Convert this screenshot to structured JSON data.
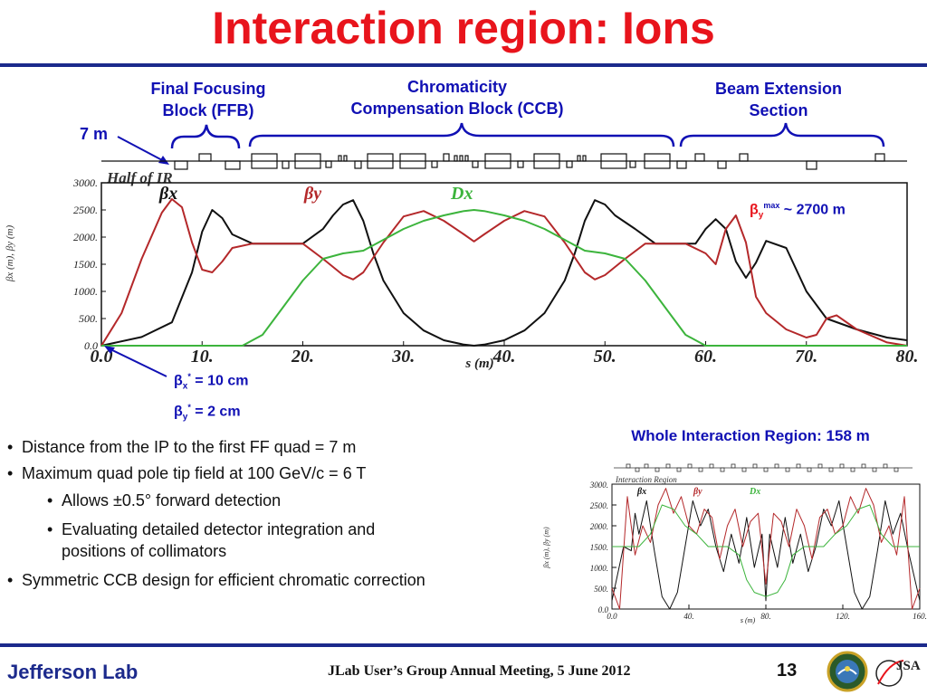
{
  "slide": {
    "title": "Interaction region: Ions",
    "page_number": "13",
    "footer_event": "JLab User’s Group Annual Meeting, 5 June 2012",
    "footer_logo": "Jefferson Lab",
    "footer_logo2": "JSA"
  },
  "callouts": {
    "ffb_line1": "Final Focusing",
    "ffb_line2": "Block (FFB)",
    "ccb_line1": "Chromaticity",
    "ccb_line2": "Compensation Block (CCB)",
    "bes_line1": "Beam Extension",
    "bes_line2": "Section",
    "distance": "7 m",
    "beta_max_sym": "β",
    "beta_max_sub": "y",
    "beta_max_sup": "max",
    "beta_max_val": " ~ 2700 m",
    "bx_sym": "β",
    "bx_sub": "x",
    "bx_sup": "*",
    "bx_val": " = 10 cm",
    "by_sym": "β",
    "by_sub": "y",
    "by_sup": "*",
    "by_val": " = 2 cm",
    "whole_ir": "Whole Interaction Region: 158 m"
  },
  "bullets": {
    "b1": "Distance from the IP to the first FF quad = 7 m",
    "b2": "Maximum quad pole tip field at 100 GeV/c = 6 T",
    "b2a": "Allows ±0.5° forward detection",
    "b2b_1": "Evaluating detailed detector integration and",
    "b2b_2": "positions of collimators",
    "b3": "Symmetric CCB design for efficient chromatic correction"
  },
  "colors": {
    "title_red": "#e8141c",
    "accent_blue": "#1010b4",
    "beta_x": "#111111",
    "beta_y": "#b4282a",
    "dispersion": "#3cb43c"
  },
  "chart_data": [
    {
      "type": "line",
      "title": "Half of IR",
      "xlabel": "s (m)",
      "ylabel": "βx (m), βy (m)",
      "xlim": [
        0,
        80
      ],
      "ylim": [
        0,
        3000
      ],
      "xticks": [
        "0.0",
        "10.",
        "20.",
        "30.",
        "40.",
        "50.",
        "60.",
        "70.",
        "80."
      ],
      "yticks": [
        "0.0",
        "500.",
        "1000.",
        "1500.",
        "2000.",
        "2500.",
        "3000."
      ],
      "legend": [
        "βx",
        "βy",
        "Dx"
      ],
      "grid": false,
      "series": [
        {
          "name": "βx",
          "color": "#111111",
          "x": [
            0,
            4,
            7,
            9,
            10,
            11,
            12,
            13,
            15,
            18,
            20,
            22,
            23,
            24,
            25,
            26,
            27,
            28,
            30,
            32,
            34,
            36,
            37,
            38,
            40,
            42,
            44,
            46,
            47,
            48,
            49,
            50,
            51,
            53,
            55,
            57,
            59,
            60,
            61,
            62,
            63,
            64,
            65,
            66,
            68,
            70,
            72,
            75,
            78,
            80
          ],
          "y": [
            0,
            160,
            430,
            1350,
            2100,
            2500,
            2350,
            2050,
            1880,
            1880,
            1880,
            2150,
            2400,
            2600,
            2680,
            2300,
            1700,
            1200,
            600,
            280,
            100,
            20,
            0,
            20,
            100,
            280,
            600,
            1200,
            1700,
            2300,
            2680,
            2600,
            2400,
            2150,
            1880,
            1880,
            1880,
            2150,
            2330,
            2150,
            1550,
            1250,
            1530,
            1930,
            1800,
            1000,
            500,
            300,
            150,
            100
          ]
        },
        {
          "name": "βy",
          "color": "#b4282a",
          "x": [
            0,
            2,
            4,
            6,
            7,
            8,
            9,
            10,
            11,
            12,
            13,
            15,
            18,
            20,
            22,
            24,
            25,
            26,
            28,
            30,
            32,
            34,
            36,
            37,
            38,
            40,
            42,
            44,
            46,
            48,
            49,
            50,
            52,
            54,
            56,
            58,
            60,
            61,
            62,
            63,
            64,
            65,
            66,
            68,
            70,
            71,
            72,
            73,
            75,
            78,
            80
          ],
          "y": [
            0,
            600,
            1600,
            2450,
            2700,
            2550,
            1900,
            1400,
            1350,
            1550,
            1800,
            1880,
            1880,
            1880,
            1600,
            1300,
            1220,
            1350,
            1900,
            2380,
            2480,
            2300,
            2050,
            1920,
            2050,
            2300,
            2480,
            2380,
            1900,
            1350,
            1220,
            1300,
            1600,
            1880,
            1880,
            1880,
            1700,
            1500,
            2150,
            2400,
            1900,
            900,
            600,
            300,
            150,
            200,
            500,
            560,
            300,
            60,
            0
          ]
        },
        {
          "name": "Dx",
          "color": "#3cb43c",
          "x": [
            0,
            10,
            14,
            16,
            18,
            20,
            22,
            24,
            26,
            28,
            30,
            32,
            34,
            36,
            37,
            38,
            40,
            42,
            44,
            46,
            48,
            50,
            52,
            54,
            56,
            58,
            60,
            62,
            70,
            80
          ],
          "y": [
            0,
            0,
            0,
            200,
            700,
            1200,
            1600,
            1700,
            1750,
            1950,
            2150,
            2300,
            2400,
            2480,
            2500,
            2480,
            2400,
            2300,
            2150,
            1950,
            1750,
            1700,
            1600,
            1200,
            700,
            200,
            0,
            0,
            0,
            0
          ]
        }
      ]
    },
    {
      "type": "line",
      "title": "Interaction Region",
      "xlabel": "s (m)",
      "ylabel": "βx (m), βy (m)",
      "xlim": [
        0,
        160
      ],
      "ylim": [
        0,
        3000
      ],
      "xticks": [
        "0.0",
        "40.",
        "80.",
        "120.",
        "160."
      ],
      "yticks": [
        "0.0",
        "500.",
        "1000.",
        "1500.",
        "2000.",
        "2500.",
        "3000."
      ],
      "legend": [
        "βx",
        "βy",
        "Dx"
      ],
      "grid": false,
      "series": [
        {
          "name": "βx",
          "color": "#111111",
          "x": [
            0,
            6,
            10,
            12,
            14,
            18,
            22,
            26,
            30,
            34,
            38,
            42,
            46,
            50,
            54,
            58,
            62,
            66,
            70,
            74,
            78,
            80,
            82,
            86,
            90,
            94,
            98,
            102,
            106,
            110,
            114,
            118,
            122,
            126,
            130,
            134,
            138,
            142,
            146,
            150,
            154,
            160
          ],
          "y": [
            200,
            1500,
            1400,
            2300,
            1800,
            2600,
            1400,
            300,
            0,
            400,
            1500,
            2600,
            2000,
            2400,
            1500,
            900,
            1800,
            1100,
            2200,
            1000,
            1800,
            200,
            1800,
            1000,
            2200,
            1100,
            1800,
            900,
            1500,
            2400,
            2000,
            2600,
            1500,
            400,
            0,
            300,
            1400,
            2600,
            1800,
            2300,
            1400,
            200
          ]
        },
        {
          "name": "βy",
          "color": "#b4282a",
          "x": [
            0,
            4,
            8,
            12,
            16,
            20,
            24,
            28,
            32,
            36,
            40,
            44,
            48,
            52,
            56,
            60,
            64,
            68,
            72,
            76,
            80,
            84,
            88,
            92,
            96,
            100,
            104,
            108,
            112,
            116,
            120,
            124,
            128,
            132,
            136,
            140,
            144,
            148,
            152,
            156,
            160
          ],
          "y": [
            500,
            0,
            2700,
            1300,
            2000,
            1600,
            2500,
            2900,
            2300,
            2700,
            2000,
            1800,
            2400,
            2200,
            1200,
            2000,
            2400,
            1500,
            2100,
            2300,
            600,
            2300,
            2100,
            1500,
            2400,
            2000,
            1200,
            2200,
            2400,
            1800,
            2000,
            2700,
            2300,
            2900,
            2500,
            1600,
            2000,
            1300,
            2700,
            0,
            500
          ]
        },
        {
          "name": "Dx",
          "color": "#3cb43c",
          "x": [
            0,
            10,
            14,
            20,
            26,
            32,
            38,
            44,
            50,
            56,
            60,
            66,
            70,
            74,
            80,
            86,
            90,
            94,
            100,
            106,
            110,
            116,
            122,
            128,
            134,
            140,
            146,
            150,
            160
          ],
          "y": [
            1500,
            1500,
            1500,
            1800,
            2500,
            2400,
            2000,
            1800,
            1500,
            1500,
            1500,
            1300,
            700,
            400,
            300,
            400,
            700,
            1300,
            1500,
            1500,
            1500,
            1800,
            2000,
            2400,
            2500,
            1800,
            1500,
            1500,
            1500
          ]
        }
      ]
    }
  ]
}
